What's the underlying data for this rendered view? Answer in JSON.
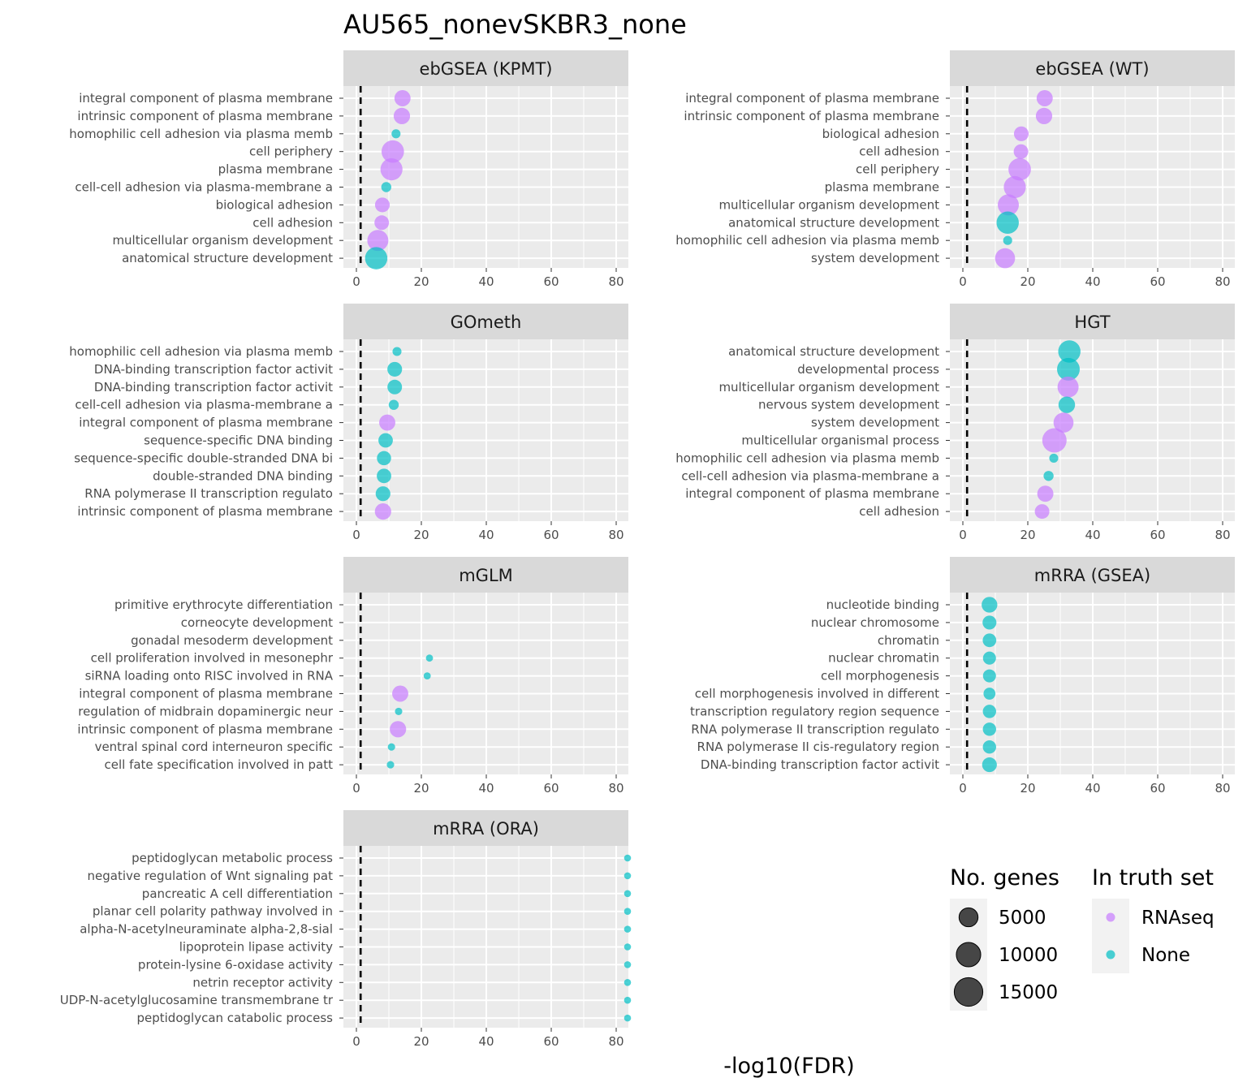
{
  "title": "AU565_nonevSKBR3_none",
  "xlabel": "-log10(FDR)",
  "legend": {
    "size_title": "No. genes",
    "size_items": [
      "5000",
      "10000",
      "15000"
    ],
    "size_values": [
      5000,
      10000,
      15000
    ],
    "color_title": "In truth set",
    "color_items": [
      "RNAseq",
      "None"
    ]
  },
  "colors": {
    "RNAseq": "#c77cff",
    "None": "#00bfc4",
    "panel_bg": "#ebebeb",
    "strip_bg": "#d9d9d9",
    "threshold": "#000000"
  },
  "chart_data": {
    "type": "scatter",
    "x_range": [
      0,
      85
    ],
    "x_ticks": [
      0,
      20,
      40,
      60,
      80
    ],
    "threshold_x": 1.3,
    "facets": [
      {
        "name": "ebGSEA (KPMT)",
        "terms": [
          {
            "label": "integral component of plasma membrane",
            "x": 14.2,
            "genes": 2200,
            "truth": "RNAseq"
          },
          {
            "label": "intrinsic component of plasma membrane",
            "x": 14.0,
            "genes": 2300,
            "truth": "RNAseq"
          },
          {
            "label": "homophilic cell adhesion via plasma memb",
            "x": 12.2,
            "genes": 150,
            "truth": "None"
          },
          {
            "label": "cell periphery",
            "x": 11.2,
            "genes": 6000,
            "truth": "RNAseq"
          },
          {
            "label": "plasma membrane",
            "x": 10.8,
            "genes": 5700,
            "truth": "RNAseq"
          },
          {
            "label": "cell-cell adhesion via plasma-membrane a",
            "x": 9.2,
            "genes": 300,
            "truth": "None"
          },
          {
            "label": "biological adhesion",
            "x": 8.0,
            "genes": 1600,
            "truth": "RNAseq"
          },
          {
            "label": "cell adhesion",
            "x": 7.8,
            "genes": 1550,
            "truth": "RNAseq"
          },
          {
            "label": "multicellular organism development",
            "x": 6.6,
            "genes": 5000,
            "truth": "RNAseq"
          },
          {
            "label": "anatomical structure development",
            "x": 6.1,
            "genes": 5900,
            "truth": "None"
          }
        ]
      },
      {
        "name": "ebGSEA (WT)",
        "terms": [
          {
            "label": "integral component of plasma membrane",
            "x": 25.2,
            "genes": 2200,
            "truth": "RNAseq"
          },
          {
            "label": "intrinsic component of plasma membrane",
            "x": 25.0,
            "genes": 2300,
            "truth": "RNAseq"
          },
          {
            "label": "biological adhesion",
            "x": 18.0,
            "genes": 1600,
            "truth": "RNAseq"
          },
          {
            "label": "cell adhesion",
            "x": 17.9,
            "genes": 1550,
            "truth": "RNAseq"
          },
          {
            "label": "cell periphery",
            "x": 17.5,
            "genes": 6000,
            "truth": "RNAseq"
          },
          {
            "label": "plasma membrane",
            "x": 16.0,
            "genes": 5700,
            "truth": "RNAseq"
          },
          {
            "label": "multicellular organism development",
            "x": 14.0,
            "genes": 5000,
            "truth": "RNAseq"
          },
          {
            "label": "anatomical structure development",
            "x": 13.8,
            "genes": 5900,
            "truth": "None"
          },
          {
            "label": "homophilic cell adhesion via plasma memb",
            "x": 13.8,
            "genes": 150,
            "truth": "None"
          },
          {
            "label": "system development",
            "x": 13.0,
            "genes": 4300,
            "truth": "RNAseq"
          }
        ]
      },
      {
        "name": "GOmeth",
        "terms": [
          {
            "label": "homophilic cell adhesion via plasma memb",
            "x": 12.5,
            "genes": 150,
            "truth": "None"
          },
          {
            "label": "DNA-binding transcription factor activit",
            "x": 11.8,
            "genes": 1600,
            "truth": "None"
          },
          {
            "label": "DNA-binding transcription factor activit",
            "x": 11.8,
            "genes": 1550,
            "truth": "None"
          },
          {
            "label": "cell-cell adhesion via plasma-membrane a",
            "x": 11.5,
            "genes": 300,
            "truth": "None"
          },
          {
            "label": "integral component of plasma membrane",
            "x": 9.5,
            "genes": 2200,
            "truth": "RNAseq"
          },
          {
            "label": "sequence-specific DNA binding",
            "x": 9.0,
            "genes": 1500,
            "truth": "None"
          },
          {
            "label": "sequence-specific double-stranded DNA bi",
            "x": 8.5,
            "genes": 1400,
            "truth": "None"
          },
          {
            "label": "double-stranded DNA binding",
            "x": 8.5,
            "genes": 1500,
            "truth": "None"
          },
          {
            "label": "RNA polymerase II transcription regulato",
            "x": 8.2,
            "genes": 1600,
            "truth": "None"
          },
          {
            "label": "intrinsic component of plasma membrane",
            "x": 8.2,
            "genes": 2300,
            "truth": "RNAseq"
          }
        ]
      },
      {
        "name": "HGT",
        "terms": [
          {
            "label": "anatomical structure development",
            "x": 32.8,
            "genes": 5900,
            "truth": "None"
          },
          {
            "label": "developmental process",
            "x": 32.5,
            "genes": 6200,
            "truth": "None"
          },
          {
            "label": "multicellular organism development",
            "x": 32.4,
            "genes": 5000,
            "truth": "RNAseq"
          },
          {
            "label": "nervous system development",
            "x": 32.0,
            "genes": 2400,
            "truth": "None"
          },
          {
            "label": "system development",
            "x": 31.0,
            "genes": 4300,
            "truth": "RNAseq"
          },
          {
            "label": "multicellular organismal process",
            "x": 28.2,
            "genes": 7500,
            "truth": "RNAseq"
          },
          {
            "label": "homophilic cell adhesion via plasma memb",
            "x": 28.0,
            "genes": 150,
            "truth": "None"
          },
          {
            "label": "cell-cell adhesion via plasma-membrane a",
            "x": 26.4,
            "genes": 300,
            "truth": "None"
          },
          {
            "label": "integral component of plasma membrane",
            "x": 25.4,
            "genes": 2200,
            "truth": "RNAseq"
          },
          {
            "label": "cell adhesion",
            "x": 24.4,
            "genes": 1550,
            "truth": "RNAseq"
          }
        ]
      },
      {
        "name": "mGLM",
        "terms": [
          {
            "label": "primitive erythrocyte differentiation",
            "x": null,
            "genes": 0,
            "truth": "None"
          },
          {
            "label": "corneocyte development",
            "x": null,
            "genes": 0,
            "truth": "None"
          },
          {
            "label": "gonadal mesoderm development",
            "x": null,
            "genes": 0,
            "truth": "None"
          },
          {
            "label": "cell proliferation involved in mesonephr",
            "x": 22.5,
            "genes": 10,
            "truth": "None"
          },
          {
            "label": "siRNA loading onto RISC involved in RNA ",
            "x": 21.8,
            "genes": 10,
            "truth": "None"
          },
          {
            "label": "integral component of plasma membrane",
            "x": 13.5,
            "genes": 2200,
            "truth": "RNAseq"
          },
          {
            "label": "regulation of midbrain dopaminergic neur",
            "x": 13.0,
            "genes": 20,
            "truth": "None"
          },
          {
            "label": "intrinsic component of plasma membrane",
            "x": 12.8,
            "genes": 2300,
            "truth": "RNAseq"
          },
          {
            "label": "ventral spinal cord interneuron specific",
            "x": 10.8,
            "genes": 20,
            "truth": "None"
          },
          {
            "label": "cell fate specification involved in patt",
            "x": 10.5,
            "genes": 20,
            "truth": "None"
          }
        ]
      },
      {
        "name": "mRRA (GSEA)",
        "terms": [
          {
            "label": "nucleotide binding",
            "x": 8.2,
            "genes": 2000,
            "truth": "None"
          },
          {
            "label": "nuclear chromosome",
            "x": 8.2,
            "genes": 1300,
            "truth": "None"
          },
          {
            "label": "chromatin",
            "x": 8.2,
            "genes": 1200,
            "truth": "None"
          },
          {
            "label": "nuclear chromatin",
            "x": 8.2,
            "genes": 1000,
            "truth": "None"
          },
          {
            "label": "cell morphogenesis",
            "x": 8.2,
            "genes": 1000,
            "truth": "None"
          },
          {
            "label": "cell morphogenesis involved in different",
            "x": 8.2,
            "genes": 700,
            "truth": "None"
          },
          {
            "label": "transcription regulatory region sequence",
            "x": 8.2,
            "genes": 1100,
            "truth": "None"
          },
          {
            "label": "RNA polymerase II transcription regulato",
            "x": 8.2,
            "genes": 1100,
            "truth": "None"
          },
          {
            "label": "RNA polymerase II cis-regulatory region ",
            "x": 8.2,
            "genes": 1100,
            "truth": "None"
          },
          {
            "label": "DNA-binding transcription factor activit",
            "x": 8.2,
            "genes": 1600,
            "truth": "None"
          }
        ]
      },
      {
        "name": "mRRA (ORA)",
        "terms": [
          {
            "label": "peptidoglycan metabolic process",
            "x": 83.5,
            "genes": 5,
            "truth": "None"
          },
          {
            "label": "negative regulation of Wnt signaling pat",
            "x": 83.5,
            "genes": 5,
            "truth": "None"
          },
          {
            "label": "pancreatic A cell differentiation",
            "x": 83.5,
            "genes": 5,
            "truth": "None"
          },
          {
            "label": "planar cell polarity pathway involved in",
            "x": 83.5,
            "genes": 5,
            "truth": "None"
          },
          {
            "label": "alpha-N-acetylneuraminate alpha-2,8-sial",
            "x": 83.5,
            "genes": 5,
            "truth": "None"
          },
          {
            "label": "lipoprotein lipase activity",
            "x": 83.5,
            "genes": 5,
            "truth": "None"
          },
          {
            "label": "protein-lysine 6-oxidase activity",
            "x": 83.5,
            "genes": 5,
            "truth": "None"
          },
          {
            "label": "netrin receptor activity",
            "x": 83.5,
            "genes": 5,
            "truth": "None"
          },
          {
            "label": "UDP-N-acetylglucosamine transmembrane tr",
            "x": 83.5,
            "genes": 5,
            "truth": "None"
          },
          {
            "label": "peptidoglycan catabolic process",
            "x": 83.5,
            "genes": 5,
            "truth": "None"
          }
        ]
      }
    ]
  }
}
